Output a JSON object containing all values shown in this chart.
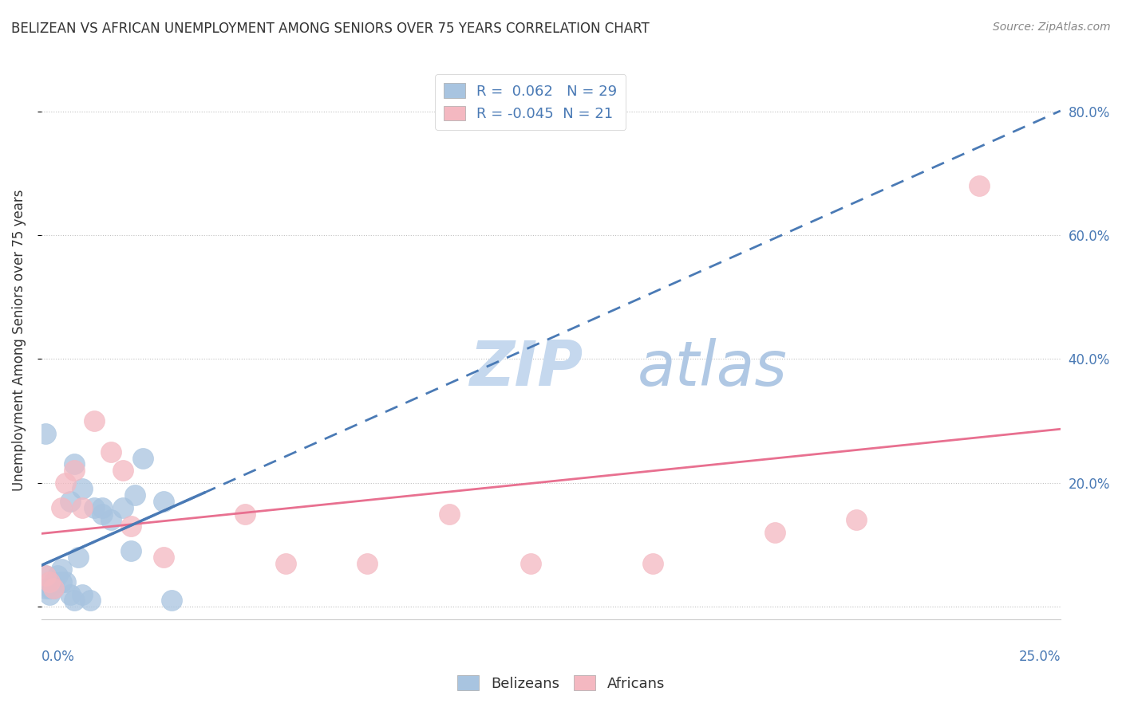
{
  "title": "BELIZEAN VS AFRICAN UNEMPLOYMENT AMONG SENIORS OVER 75 YEARS CORRELATION CHART",
  "source": "Source: ZipAtlas.com",
  "ylabel": "Unemployment Among Seniors over 75 years",
  "ytick_values": [
    0.0,
    0.2,
    0.4,
    0.6,
    0.8
  ],
  "ytick_labels": [
    "",
    "20.0%",
    "40.0%",
    "60.0%",
    "80.0%"
  ],
  "xlim": [
    0.0,
    0.25
  ],
  "ylim": [
    -0.02,
    0.88
  ],
  "belizean_R": 0.062,
  "belizean_N": 29,
  "african_R": -0.045,
  "african_N": 21,
  "belizean_color": "#a8c4e0",
  "african_color": "#f4b8c1",
  "belizean_line_color": "#4a7ab5",
  "african_line_color": "#e87090",
  "belizean_x": [
    0.001,
    0.002,
    0.003,
    0.004,
    0.005,
    0.006,
    0.007,
    0.008,
    0.009,
    0.01,
    0.012,
    0.013,
    0.015,
    0.017,
    0.02,
    0.022,
    0.023,
    0.025,
    0.03,
    0.032,
    0.001,
    0.002,
    0.003,
    0.005,
    0.007,
    0.008,
    0.01,
    0.015,
    0.001
  ],
  "belizean_y": [
    0.05,
    0.03,
    0.04,
    0.05,
    0.06,
    0.04,
    0.02,
    0.01,
    0.08,
    0.02,
    0.01,
    0.16,
    0.15,
    0.14,
    0.16,
    0.09,
    0.18,
    0.24,
    0.17,
    0.01,
    0.03,
    0.02,
    0.03,
    0.04,
    0.17,
    0.23,
    0.19,
    0.16,
    0.28
  ],
  "african_x": [
    0.001,
    0.002,
    0.003,
    0.005,
    0.006,
    0.008,
    0.01,
    0.013,
    0.017,
    0.02,
    0.022,
    0.03,
    0.05,
    0.06,
    0.08,
    0.1,
    0.12,
    0.15,
    0.18,
    0.2,
    0.23
  ],
  "african_y": [
    0.05,
    0.04,
    0.03,
    0.16,
    0.2,
    0.22,
    0.16,
    0.3,
    0.25,
    0.22,
    0.13,
    0.08,
    0.15,
    0.07,
    0.07,
    0.15,
    0.07,
    0.07,
    0.12,
    0.14,
    0.68
  ]
}
